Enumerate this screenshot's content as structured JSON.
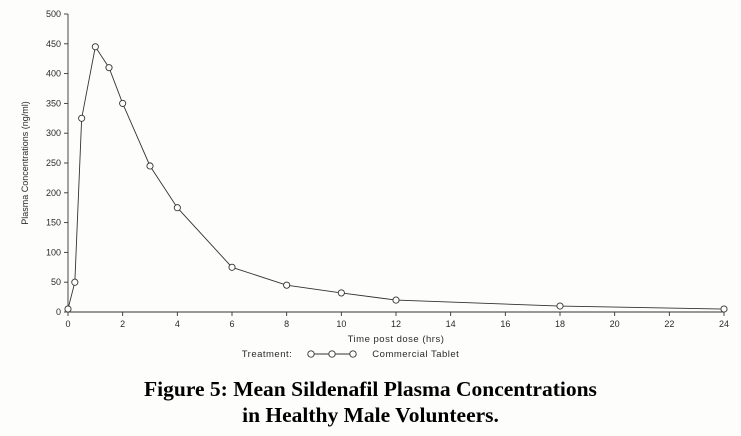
{
  "chart_data": {
    "type": "line",
    "title": "",
    "xlabel": "Time post dose (hrs)",
    "ylabel": "Plasma Concentrations (ng/ml)",
    "xlim": [
      0,
      24
    ],
    "ylim": [
      0,
      500
    ],
    "xticks": [
      0,
      2,
      4,
      6,
      8,
      10,
      12,
      14,
      16,
      18,
      20,
      22,
      24
    ],
    "yticks": [
      0,
      50,
      100,
      150,
      200,
      250,
      300,
      350,
      400,
      450,
      500
    ],
    "grid": false,
    "legend_position": "bottom",
    "series": [
      {
        "name": "Commercial Tablet",
        "marker": "open-circle",
        "x": [
          0,
          0.25,
          0.5,
          1,
          1.5,
          2,
          3,
          4,
          6,
          8,
          10,
          12,
          18,
          24
        ],
        "y": [
          5,
          50,
          325,
          445,
          410,
          350,
          245,
          175,
          75,
          45,
          32,
          20,
          10,
          5
        ]
      }
    ]
  },
  "legend": {
    "treatment_label": "Treatment:",
    "series_label": "Commercial Tablet"
  },
  "caption": {
    "line1": "Figure 5: Mean Sildenafil Plasma Concentrations",
    "line2": "in Healthy Male Volunteers."
  }
}
